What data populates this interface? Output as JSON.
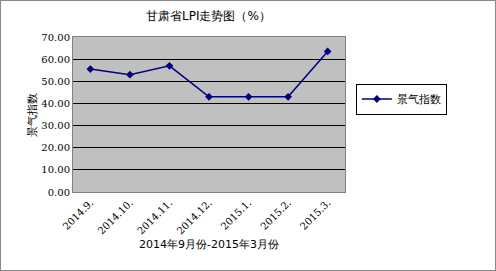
{
  "chart_data": {
    "type": "line",
    "title": "甘肃省LPI走势图（%）",
    "x_label": "2014年9月份-2015年3月份",
    "y_label": "景气指数",
    "categories": [
      "2014.9.",
      "2014.10.",
      "2014.11.",
      "2014.12.",
      "2015.1.",
      "2015.2.",
      "2015.3."
    ],
    "series": [
      {
        "name": "景气指数",
        "color": "#000080",
        "marker": "diamond",
        "values": [
          55.5,
          53.0,
          57.0,
          43.0,
          43.0,
          43.0,
          63.5
        ]
      }
    ],
    "ylim": [
      0,
      70
    ],
    "yticks": [
      {
        "value": 0,
        "label": "0.00"
      },
      {
        "value": 10,
        "label": "10.00"
      },
      {
        "value": 20,
        "label": "20.00"
      },
      {
        "value": 30,
        "label": "30.00"
      },
      {
        "value": 40,
        "label": "40.00"
      },
      {
        "value": 50,
        "label": "50.00"
      },
      {
        "value": 60,
        "label": "60.00"
      },
      {
        "value": 70,
        "label": "70.00"
      }
    ],
    "grid": true,
    "legend": "right"
  }
}
